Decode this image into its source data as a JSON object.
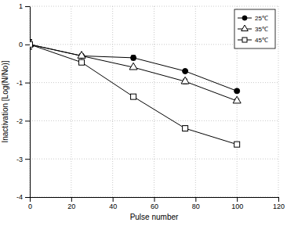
{
  "chart_data": {
    "type": "line",
    "x_label": "Pulse number",
    "y_label": "Inactivation [Log(N/No)]",
    "x": [
      0,
      25,
      50,
      75,
      100
    ],
    "series": [
      {
        "name": "25℃",
        "color": "#000000",
        "marker": "circle",
        "values": [
          0,
          -0.3,
          -0.35,
          -0.7,
          -1.22
        ],
        "errors": [
          0.12,
          0.03,
          0.06,
          0.03,
          0.03
        ]
      },
      {
        "name": "35℃",
        "color": "#000000",
        "marker": "triangle-open",
        "values": [
          0,
          -0.3,
          -0.6,
          -0.97,
          -1.48
        ],
        "errors": [
          0.12,
          0.03,
          0.03,
          0.06,
          0.05
        ]
      },
      {
        "name": "45℃",
        "color": "#000000",
        "marker": "square-open",
        "values": [
          0,
          -0.47,
          -1.37,
          -2.2,
          -2.62
        ],
        "errors": [
          0.12,
          0.03,
          0.03,
          0.07,
          0.04
        ]
      }
    ],
    "xlim": [
      0,
      120
    ],
    "xticks": [
      0,
      20,
      40,
      60,
      80,
      100,
      120
    ],
    "ylim": [
      -4,
      1
    ],
    "yticks": [
      -4,
      -3,
      -2,
      -1,
      0,
      1
    ],
    "grid": true,
    "legend": "top-right"
  }
}
